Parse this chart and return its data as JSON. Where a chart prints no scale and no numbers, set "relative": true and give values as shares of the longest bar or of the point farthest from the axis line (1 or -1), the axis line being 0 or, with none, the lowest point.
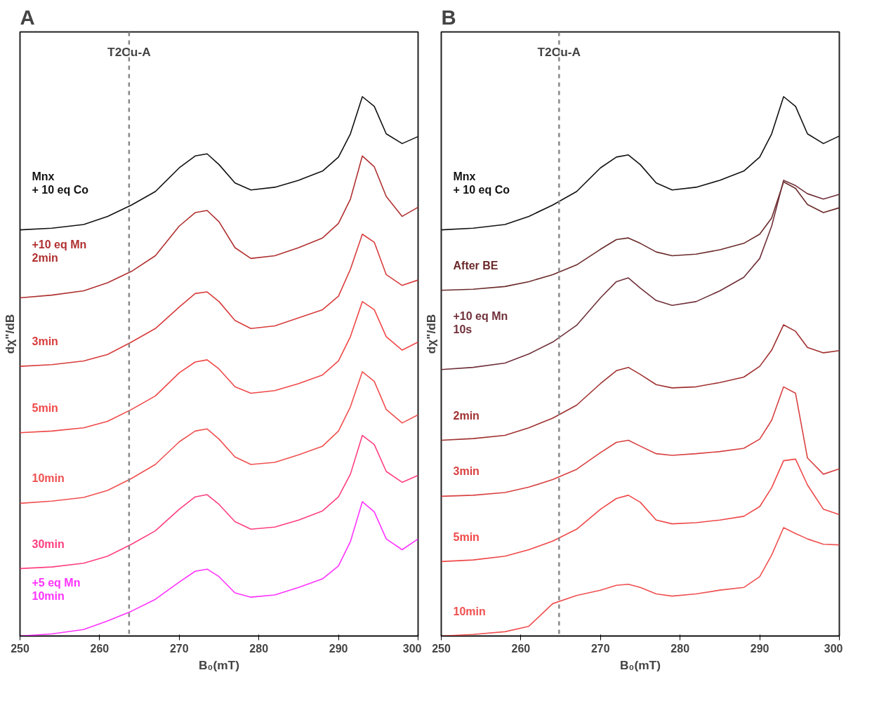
{
  "chart_data": [
    {
      "type": "line",
      "title": "A",
      "xlabel": "B₀(mT)",
      "ylabel": "dχ\"/dB",
      "relative": true,
      "xlim": [
        250,
        300
      ],
      "xticks": [
        250,
        260,
        270,
        280,
        290,
        300
      ],
      "grid": false,
      "marker": "none",
      "line_style": "solid",
      "x": [
        250,
        254,
        258,
        261,
        264,
        267,
        270,
        272,
        273.5,
        275,
        277,
        279,
        282,
        285,
        288,
        290,
        291.5,
        293,
        294.5,
        296,
        298,
        300
      ],
      "ref_lines": [
        {
          "axis": "x",
          "value": 263.7,
          "label": "T2Cu-A",
          "color": "#888888",
          "line_style": "dashed"
        }
      ],
      "series": [
        {
          "name": "Mnx\n+ 10 eq Co",
          "color": "#111111",
          "values": [
            0.753,
            0.756,
            0.763,
            0.778,
            0.799,
            0.824,
            0.868,
            0.89,
            0.894,
            0.874,
            0.84,
            0.827,
            0.832,
            0.845,
            0.862,
            0.888,
            0.931,
            1.0,
            0.982,
            0.931,
            0.913,
            0.926
          ]
        },
        {
          "name": "+10 eq Mn\n2min",
          "color": "#b03030",
          "values": [
            0.627,
            0.632,
            0.64,
            0.655,
            0.676,
            0.705,
            0.76,
            0.785,
            0.789,
            0.768,
            0.72,
            0.7,
            0.705,
            0.72,
            0.738,
            0.765,
            0.81,
            0.89,
            0.87,
            0.815,
            0.778,
            0.795
          ]
        },
        {
          "name": "3min",
          "color": "#d83c3c",
          "values": [
            0.5,
            0.503,
            0.51,
            0.522,
            0.545,
            0.57,
            0.61,
            0.635,
            0.638,
            0.62,
            0.585,
            0.57,
            0.575,
            0.59,
            0.605,
            0.63,
            0.68,
            0.745,
            0.73,
            0.67,
            0.65,
            0.66
          ]
        },
        {
          "name": "5min",
          "color": "#f04848",
          "values": [
            0.377,
            0.38,
            0.386,
            0.398,
            0.42,
            0.445,
            0.488,
            0.508,
            0.512,
            0.495,
            0.462,
            0.45,
            0.455,
            0.468,
            0.484,
            0.51,
            0.555,
            0.62,
            0.605,
            0.555,
            0.53,
            0.545
          ]
        },
        {
          "name": "10min",
          "color": "#f05050",
          "values": [
            0.246,
            0.25,
            0.257,
            0.27,
            0.292,
            0.318,
            0.36,
            0.38,
            0.384,
            0.365,
            0.332,
            0.318,
            0.322,
            0.336,
            0.352,
            0.38,
            0.425,
            0.49,
            0.472,
            0.42,
            0.395,
            0.41
          ]
        },
        {
          "name": "30min",
          "color": "#ff3f7f",
          "values": [
            0.125,
            0.128,
            0.135,
            0.148,
            0.17,
            0.195,
            0.235,
            0.258,
            0.262,
            0.244,
            0.212,
            0.198,
            0.202,
            0.215,
            0.232,
            0.258,
            0.3,
            0.372,
            0.355,
            0.305,
            0.285,
            0.298
          ]
        },
        {
          "name": "+5 eq Mn\n10min",
          "color": "#ff33ff",
          "values": [
            0,
            0.004,
            0.012,
            0.028,
            0.046,
            0.068,
            0.1,
            0.12,
            0.124,
            0.11,
            0.08,
            0.072,
            0.076,
            0.09,
            0.106,
            0.13,
            0.175,
            0.249,
            0.23,
            0.18,
            0.16,
            0.18
          ]
        }
      ]
    },
    {
      "type": "line",
      "title": "B",
      "xlabel": "B₀(mT)",
      "ylabel": "dχ\"/dB",
      "relative": true,
      "xlim": [
        250,
        300
      ],
      "xticks": [
        250,
        260,
        270,
        280,
        290,
        300
      ],
      "grid": false,
      "marker": "none",
      "line_style": "solid",
      "x": [
        250,
        254,
        258,
        261,
        264,
        267,
        270,
        272,
        273.5,
        275,
        277,
        279,
        282,
        285,
        288,
        290,
        291.5,
        293,
        294.5,
        296,
        298,
        300
      ],
      "ref_lines": [
        {
          "axis": "x",
          "value": 264.8,
          "label": "T2Cu-A",
          "color": "#888888",
          "line_style": "dashed"
        }
      ],
      "series": [
        {
          "name": "Mnx\n+ 10 eq Co",
          "color": "#111111",
          "values": [
            0.753,
            0.756,
            0.763,
            0.778,
            0.799,
            0.824,
            0.868,
            0.888,
            0.892,
            0.874,
            0.84,
            0.827,
            0.832,
            0.845,
            0.862,
            0.888,
            0.931,
            1.0,
            0.982,
            0.931,
            0.913,
            0.927
          ]
        },
        {
          "name": "After BE",
          "color": "#6b2a2a",
          "values": [
            0.641,
            0.643,
            0.648,
            0.657,
            0.67,
            0.688,
            0.717,
            0.735,
            0.738,
            0.728,
            0.712,
            0.705,
            0.708,
            0.716,
            0.728,
            0.745,
            0.775,
            0.842,
            0.83,
            0.8,
            0.785,
            0.794
          ]
        },
        {
          "name": "+10 eq Mn\n10s",
          "color": "#70303a",
          "values": [
            0.494,
            0.498,
            0.506,
            0.523,
            0.545,
            0.576,
            0.627,
            0.657,
            0.664,
            0.645,
            0.622,
            0.613,
            0.62,
            0.64,
            0.665,
            0.7,
            0.76,
            0.845,
            0.835,
            0.82,
            0.81,
            0.819
          ]
        },
        {
          "name": "2min",
          "color": "#a03030",
          "values": [
            0.363,
            0.366,
            0.372,
            0.386,
            0.404,
            0.428,
            0.468,
            0.492,
            0.498,
            0.485,
            0.466,
            0.46,
            0.462,
            0.47,
            0.48,
            0.5,
            0.53,
            0.577,
            0.565,
            0.535,
            0.525,
            0.529
          ]
        },
        {
          "name": "3min",
          "color": "#d84040",
          "values": [
            0.259,
            0.261,
            0.266,
            0.276,
            0.29,
            0.309,
            0.34,
            0.359,
            0.363,
            0.352,
            0.338,
            0.335,
            0.338,
            0.342,
            0.348,
            0.365,
            0.4,
            0.462,
            0.45,
            0.33,
            0.3,
            0.31
          ]
        },
        {
          "name": "5min",
          "color": "#f04848",
          "values": [
            0.138,
            0.141,
            0.148,
            0.16,
            0.176,
            0.198,
            0.235,
            0.255,
            0.261,
            0.248,
            0.215,
            0.208,
            0.21,
            0.215,
            0.222,
            0.24,
            0.275,
            0.325,
            0.328,
            0.28,
            0.235,
            0.225
          ]
        },
        {
          "name": "10min",
          "color": "#f05050",
          "values": [
            0,
            0.003,
            0.008,
            0.018,
            0.06,
            0.075,
            0.085,
            0.094,
            0.096,
            0.09,
            0.078,
            0.074,
            0.078,
            0.085,
            0.09,
            0.11,
            0.15,
            0.201,
            0.19,
            0.18,
            0.17,
            0.169
          ]
        }
      ]
    }
  ]
}
